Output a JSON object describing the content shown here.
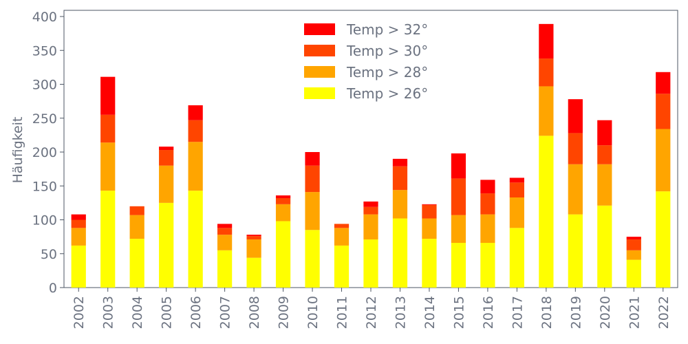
{
  "chart_data": {
    "type": "bar",
    "stacked": true,
    "title": "",
    "xlabel": "",
    "ylabel": "Häufigkeit",
    "ylim": [
      0,
      410
    ],
    "yticks": [
      0,
      50,
      100,
      150,
      200,
      250,
      300,
      350,
      400
    ],
    "grid": false,
    "legend_position": "top-center",
    "categories": [
      "2002",
      "2003",
      "2004",
      "2005",
      "2006",
      "2007",
      "2008",
      "2009",
      "2010",
      "2011",
      "2012",
      "2013",
      "2014",
      "2015",
      "2016",
      "2017",
      "2018",
      "2019",
      "2020",
      "2021",
      "2022"
    ],
    "series": [
      {
        "name": "Temp > 26°",
        "color": "#ffff00",
        "values": [
          62,
          143,
          72,
          125,
          143,
          55,
          44,
          98,
          85,
          62,
          71,
          102,
          72,
          66,
          66,
          88,
          224,
          108,
          121,
          41,
          142
        ]
      },
      {
        "name": "Temp > 28°",
        "color": "#ffa500",
        "values": [
          26,
          71,
          35,
          55,
          72,
          23,
          27,
          25,
          56,
          26,
          37,
          42,
          30,
          41,
          42,
          45,
          73,
          74,
          61,
          14,
          92
        ]
      },
      {
        "name": "Temp > 30°",
        "color": "#ff4500",
        "values": [
          12,
          41,
          13,
          23,
          32,
          10,
          5,
          9,
          39,
          6,
          11,
          35,
          20,
          54,
          31,
          22,
          41,
          46,
          28,
          16,
          52
        ]
      },
      {
        "name": "Temp > 32°",
        "color": "#ff0000",
        "values": [
          8,
          56,
          0,
          5,
          22,
          6,
          2,
          4,
          20,
          0,
          8,
          11,
          1,
          37,
          20,
          7,
          51,
          50,
          37,
          4,
          32
        ]
      }
    ]
  }
}
